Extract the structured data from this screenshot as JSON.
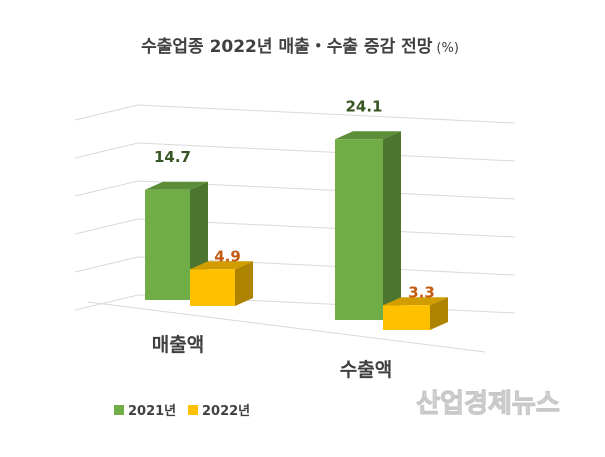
{
  "chart_data": {
    "type": "bar",
    "title": "수출업종 2022년 매출・수출 증감 전망",
    "title_unit": "(%)",
    "categories": [
      "매출액",
      "수출액"
    ],
    "series": [
      {
        "name": "2021년",
        "values": [
          14.7,
          24.1
        ],
        "color": "#70ad47"
      },
      {
        "name": "2022년",
        "values": [
          4.9,
          3.3
        ],
        "color": "#ffc000"
      }
    ],
    "data_label_colors": [
      "#375623",
      "#c55a11"
    ],
    "grid": true,
    "style": "3d-column",
    "legend": "bottom-left"
  },
  "watermark": "산업경제뉴스"
}
